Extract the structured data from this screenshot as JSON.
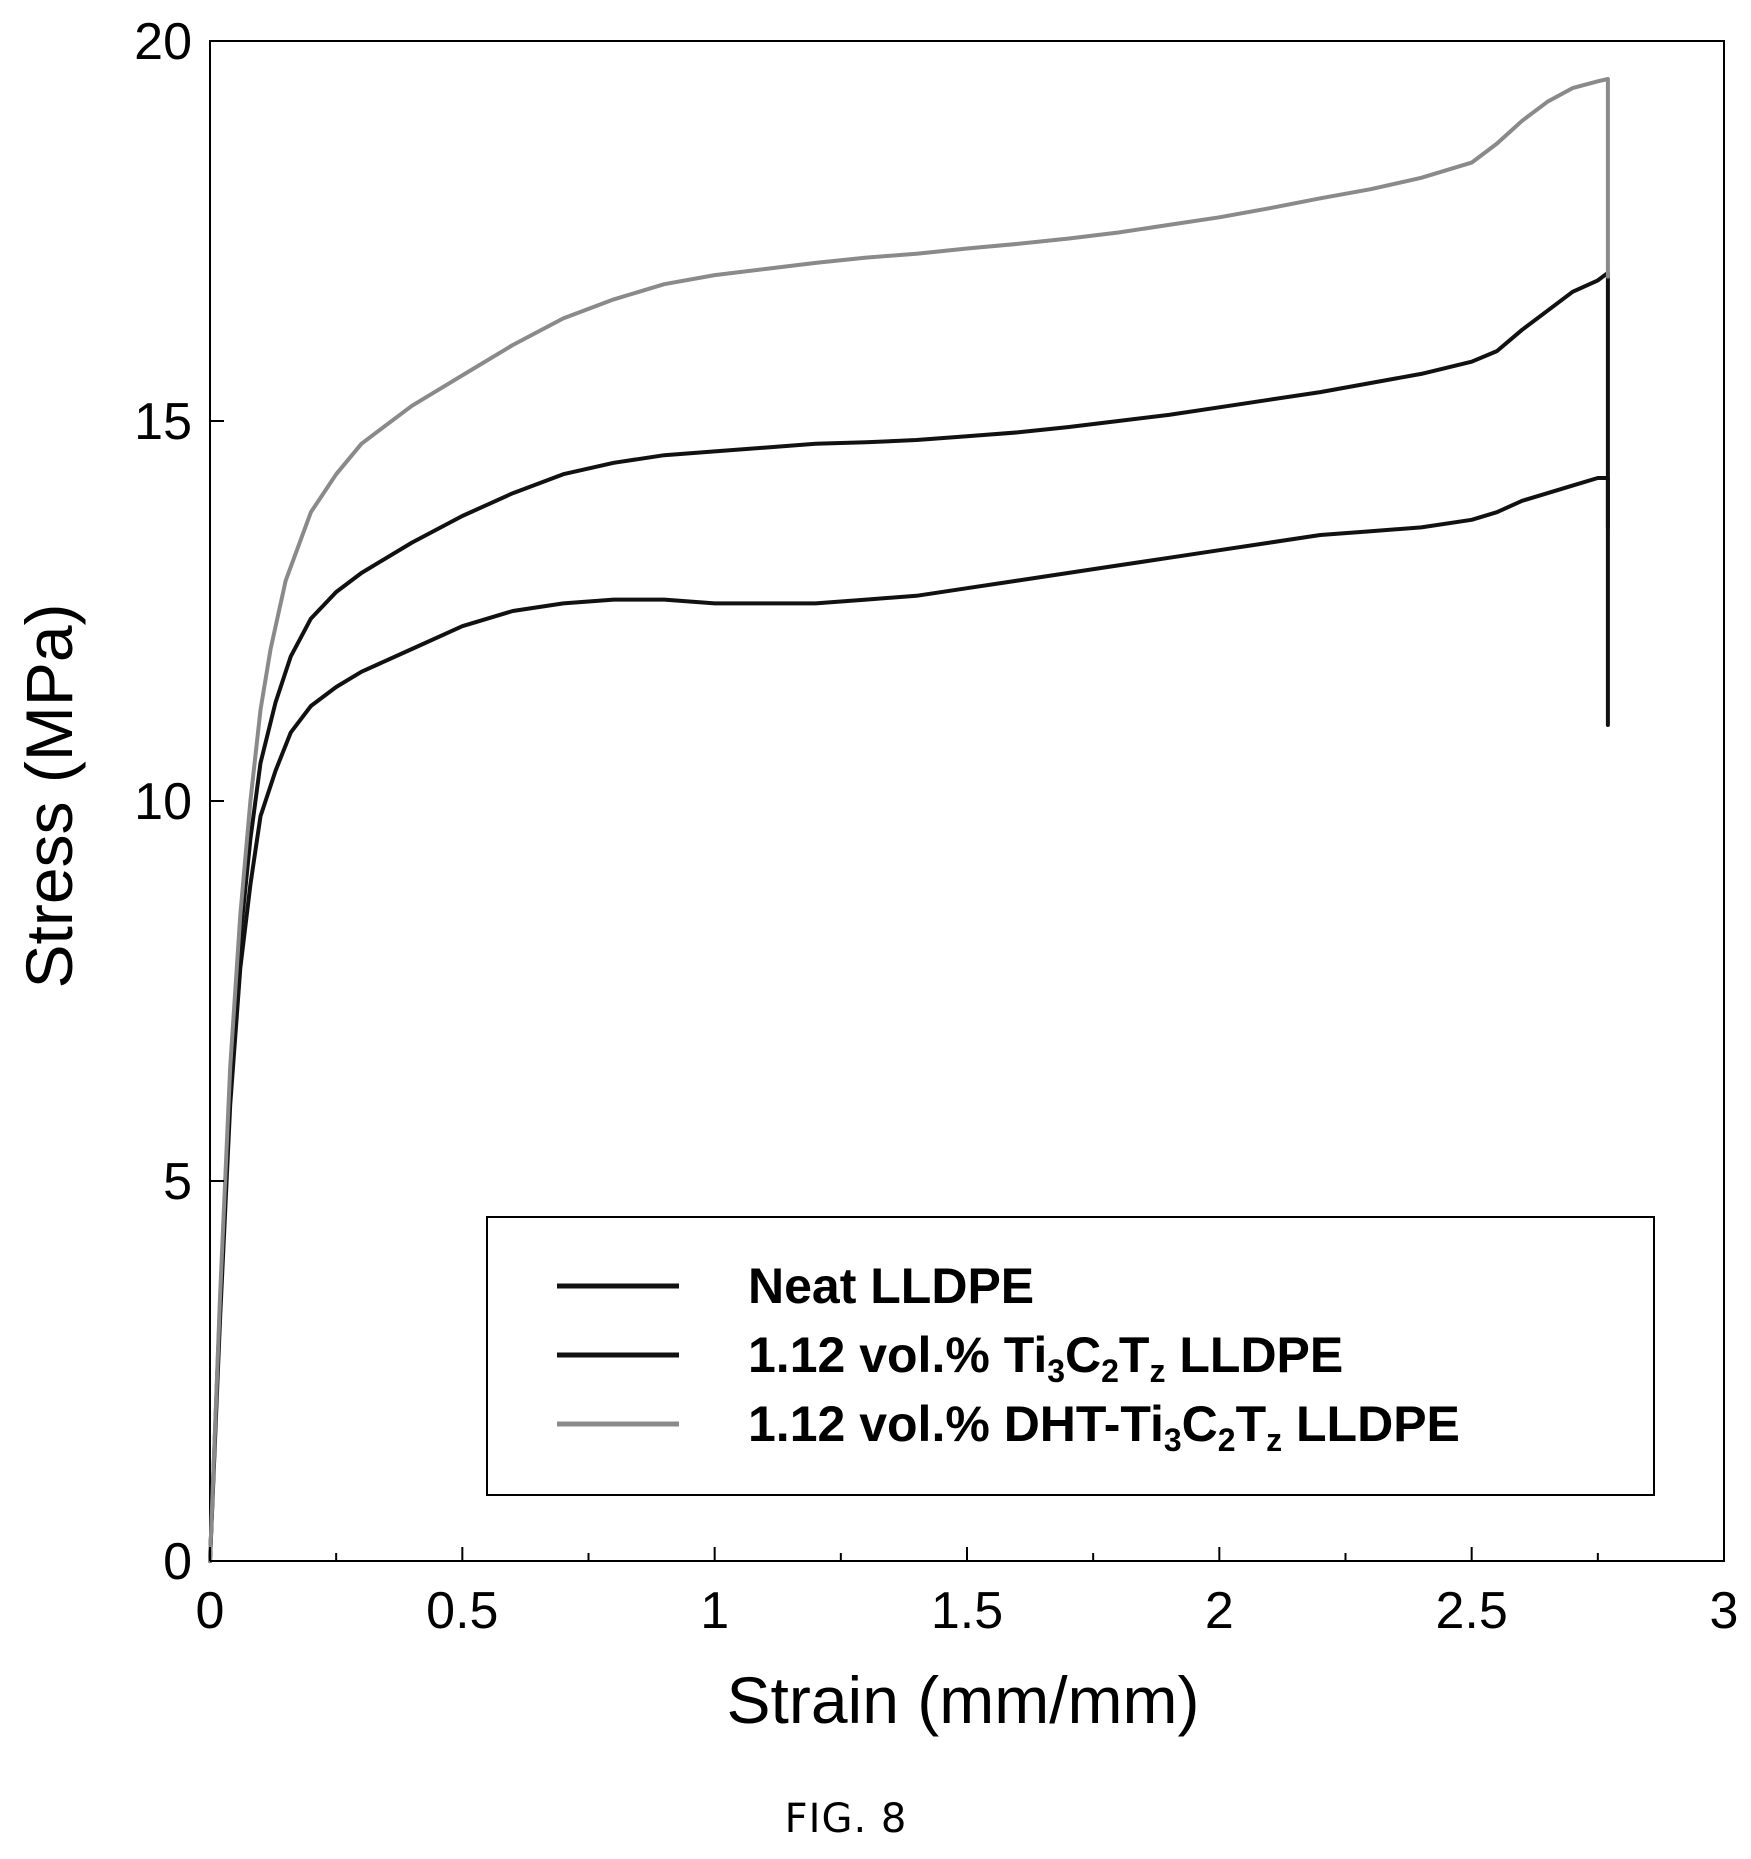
{
  "figure": {
    "caption": "FIG. 8"
  },
  "chart_data": {
    "type": "line",
    "xlabel": "Strain (mm/mm)",
    "ylabel": "Stress (MPa)",
    "xlim": [
      0,
      3
    ],
    "ylim": [
      0,
      20
    ],
    "x_ticks": [
      "0",
      "0.5",
      "1",
      "1.5",
      "2",
      "2.5",
      "3"
    ],
    "y_ticks": [
      "0",
      "5",
      "10",
      "15",
      "20"
    ],
    "x_minor_step": 0.25,
    "grid": false,
    "legend_position": "bottom-right",
    "series": [
      {
        "name": "Neat LLDPE",
        "name_parts": [
          {
            "text": "Neat LLDPE",
            "sub": false
          }
        ],
        "color": "#111111",
        "x": [
          0,
          0.02,
          0.04,
          0.06,
          0.08,
          0.1,
          0.13,
          0.16,
          0.2,
          0.25,
          0.3,
          0.4,
          0.5,
          0.6,
          0.7,
          0.8,
          0.9,
          1.0,
          1.1,
          1.2,
          1.3,
          1.4,
          1.5,
          1.6,
          1.7,
          1.8,
          1.9,
          2.0,
          2.1,
          2.2,
          2.3,
          2.4,
          2.5,
          2.55,
          2.6,
          2.65,
          2.7,
          2.75,
          2.77,
          2.77
        ],
        "y": [
          0,
          3.2,
          6.0,
          7.8,
          8.9,
          9.8,
          10.4,
          10.9,
          11.25,
          11.5,
          11.7,
          12.0,
          12.3,
          12.5,
          12.6,
          12.65,
          12.65,
          12.6,
          12.6,
          12.6,
          12.65,
          12.7,
          12.8,
          12.9,
          13.0,
          13.1,
          13.2,
          13.3,
          13.4,
          13.5,
          13.55,
          13.6,
          13.7,
          13.8,
          13.95,
          14.05,
          14.15,
          14.25,
          14.25,
          11.0
        ]
      },
      {
        "name": "1.12 vol.% Ti3C2Tz LLDPE",
        "name_parts": [
          {
            "text": "1.12 vol.% Ti",
            "sub": false
          },
          {
            "text": "3",
            "sub": true
          },
          {
            "text": "C",
            "sub": false
          },
          {
            "text": "2",
            "sub": true
          },
          {
            "text": "T",
            "sub": false
          },
          {
            "text": "z",
            "sub": true
          },
          {
            "text": " LLDPE",
            "sub": false
          }
        ],
        "color": "#111111",
        "x": [
          0,
          0.02,
          0.04,
          0.06,
          0.08,
          0.1,
          0.13,
          0.16,
          0.2,
          0.25,
          0.3,
          0.4,
          0.5,
          0.6,
          0.7,
          0.8,
          0.9,
          1.0,
          1.1,
          1.2,
          1.3,
          1.4,
          1.5,
          1.6,
          1.7,
          1.8,
          1.9,
          2.0,
          2.1,
          2.2,
          2.3,
          2.4,
          2.5,
          2.55,
          2.6,
          2.65,
          2.7,
          2.75,
          2.77,
          2.77
        ],
        "y": [
          0,
          3.4,
          6.3,
          8.2,
          9.5,
          10.5,
          11.3,
          11.9,
          12.4,
          12.75,
          13.0,
          13.4,
          13.75,
          14.05,
          14.3,
          14.45,
          14.55,
          14.6,
          14.65,
          14.7,
          14.72,
          14.75,
          14.8,
          14.85,
          14.92,
          15.0,
          15.08,
          15.18,
          15.28,
          15.38,
          15.5,
          15.62,
          15.78,
          15.92,
          16.2,
          16.45,
          16.7,
          16.85,
          16.95,
          13.6
        ]
      },
      {
        "name": "1.12 vol.% DHT-Ti3C2Tz LLDPE",
        "name_parts": [
          {
            "text": "1.12 vol.% DHT-Ti",
            "sub": false
          },
          {
            "text": "3",
            "sub": true
          },
          {
            "text": "C",
            "sub": false
          },
          {
            "text": "2",
            "sub": true
          },
          {
            "text": "T",
            "sub": false
          },
          {
            "text": "z",
            "sub": true
          },
          {
            "text": " LLDPE",
            "sub": false
          }
        ],
        "color": "#8a8a8a",
        "x": [
          0,
          0.02,
          0.04,
          0.06,
          0.08,
          0.1,
          0.12,
          0.15,
          0.2,
          0.25,
          0.3,
          0.4,
          0.5,
          0.6,
          0.7,
          0.8,
          0.9,
          1.0,
          1.1,
          1.2,
          1.3,
          1.4,
          1.5,
          1.6,
          1.7,
          1.8,
          1.9,
          2.0,
          2.1,
          2.2,
          2.3,
          2.4,
          2.5,
          2.55,
          2.6,
          2.65,
          2.7,
          2.75,
          2.77,
          2.77
        ],
        "y": [
          0,
          3.5,
          6.5,
          8.5,
          10.0,
          11.2,
          12.0,
          12.9,
          13.8,
          14.3,
          14.7,
          15.2,
          15.6,
          16.0,
          16.35,
          16.6,
          16.8,
          16.92,
          17.0,
          17.08,
          17.15,
          17.2,
          17.27,
          17.33,
          17.4,
          17.48,
          17.58,
          17.68,
          17.8,
          17.93,
          18.05,
          18.2,
          18.4,
          18.65,
          18.95,
          19.2,
          19.38,
          19.47,
          19.5,
          16.9
        ]
      }
    ]
  }
}
